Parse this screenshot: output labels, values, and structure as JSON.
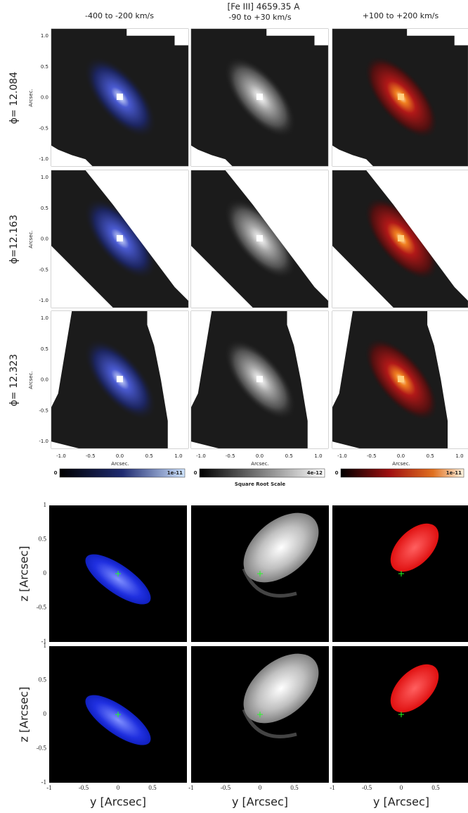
{
  "header": {
    "title": "[Fe III] 4659.35 A",
    "columns": [
      "-400 to -200 km/s",
      "-90 to +30 km/s",
      "+100 to +200 km/s"
    ]
  },
  "observed": {
    "rows": [
      {
        "label": "ϕ= 12.084"
      },
      {
        "label": "ϕ=12.163"
      },
      {
        "label": "ϕ= 12.323"
      }
    ],
    "y_axis_label": "Arcsec.",
    "x_axis_label": "Arcsec.",
    "yticks": [
      "1.0",
      "0.5",
      "0.0",
      "-0.5",
      "-1.0"
    ],
    "xticks": [
      "-1.0",
      "-0.5",
      "0.0",
      "0.5",
      "1.0"
    ],
    "colorbars": [
      {
        "min": "0",
        "max": "1e-11"
      },
      {
        "min": "0",
        "max": "4e-12"
      },
      {
        "min": "0",
        "max": "1e-11"
      }
    ],
    "colorbar_caption": "Square Root Scale"
  },
  "model": {
    "y_axis_label": "z [Arcsec]",
    "x_axis_label": "y [Arcsec]",
    "yticks": [
      "1",
      "0.5",
      "0",
      "-0.5",
      "-1"
    ],
    "xticks": [
      "-1",
      "-0.5",
      "0",
      "0.5"
    ]
  }
}
